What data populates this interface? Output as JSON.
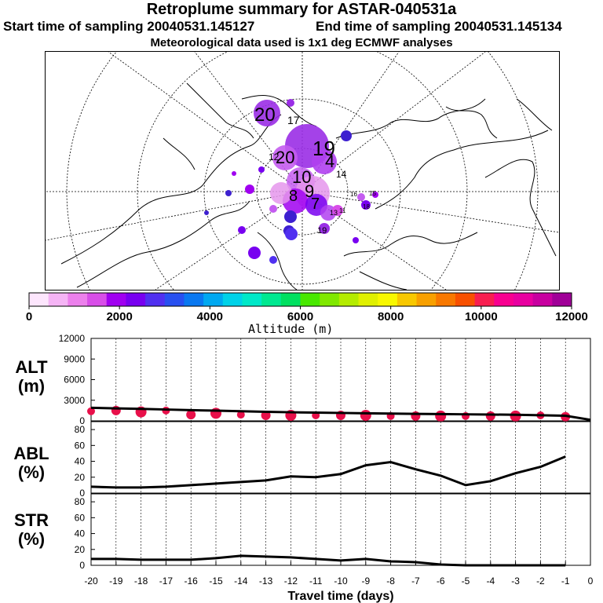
{
  "header": {
    "title": "Retroplume summary for ASTAR-040531a",
    "start_time": "Start time of sampling 20040531.145127",
    "end_time": "End time of sampling 20040531.145134",
    "met_data": "Meteorological data used is 1x1 deg ECMWF analyses"
  },
  "colorbar": {
    "label": "Altitude (m)",
    "ticks": [
      "0",
      "2000",
      "4000",
      "6000",
      "8000",
      "10000",
      "12000"
    ],
    "colors": [
      "#fde6fd",
      "#f5b4f5",
      "#ec80ec",
      "#d84ee8",
      "#a000f0",
      "#7800f0",
      "#5030f0",
      "#2850f0",
      "#0a78f0",
      "#00a8f0",
      "#00d2e8",
      "#00e8c8",
      "#00e890",
      "#00e060",
      "#48e800",
      "#80e800",
      "#b4ec00",
      "#e0f000",
      "#f8f800",
      "#f8c800",
      "#f8a000",
      "#f87800",
      "#f85000",
      "#f81e50",
      "#f80090",
      "#e800a0",
      "#c800a0",
      "#a00098"
    ]
  },
  "map": {
    "plume_labels": [
      "20",
      "17",
      "19",
      "14",
      "12",
      "20",
      "4",
      "10",
      "19",
      "13",
      "16",
      "9",
      "8",
      "7",
      "11",
      "15",
      "18"
    ]
  },
  "chart_data": [
    {
      "type": "line",
      "id": "ALT",
      "ylabel": "ALT\n(m)",
      "ylabel_top": "ALT",
      "ylabel_bottom": "(m)",
      "x": [
        -20,
        -19,
        -18,
        -17,
        -16,
        -15,
        -14,
        -13,
        -12,
        -11,
        -10,
        -9,
        -8,
        -7,
        -6,
        -5,
        -4,
        -3,
        -2,
        -1,
        0
      ],
      "values": [
        1900,
        1820,
        1740,
        1650,
        1560,
        1480,
        1400,
        1320,
        1250,
        1200,
        1150,
        1100,
        1060,
        1020,
        980,
        950,
        920,
        880,
        820,
        740,
        150
      ],
      "dots_x": [
        -20,
        -19,
        -18,
        -17,
        -16,
        -15,
        -14,
        -13,
        -12,
        -11,
        -10,
        -9,
        -8,
        -7,
        -6,
        -5,
        -4,
        -3,
        -2,
        -1
      ],
      "dots_y": [
        1400,
        1500,
        1300,
        1500,
        900,
        1100,
        900,
        800,
        800,
        800,
        800,
        800,
        700,
        700,
        700,
        700,
        700,
        700,
        800,
        600
      ],
      "ylim": [
        0,
        12000
      ],
      "yticks": [
        0,
        3000,
        6000,
        9000,
        12000
      ],
      "ytick_labels": [
        "0",
        "3000",
        "6000",
        "9000",
        "12000"
      ]
    },
    {
      "type": "line",
      "id": "ABL",
      "ylabel_top": "ABL",
      "ylabel_bottom": "(%)",
      "x": [
        -20,
        -19,
        -18,
        -17,
        -16,
        -15,
        -14,
        -13,
        -12,
        -11,
        -10,
        -9,
        -8,
        -7,
        -6,
        -5,
        -4,
        -3,
        -2,
        -1
      ],
      "values": [
        8,
        7,
        7,
        8,
        10,
        12,
        14,
        16,
        21,
        20,
        24,
        35,
        39,
        30,
        22,
        10,
        15,
        25,
        33,
        46
      ],
      "ylim": [
        0,
        90
      ],
      "yticks": [
        0,
        20,
        40,
        60,
        80
      ],
      "ytick_labels": [
        "0",
        "20",
        "40",
        "60",
        "80"
      ]
    },
    {
      "type": "line",
      "id": "STR",
      "ylabel_top": "STR",
      "ylabel_bottom": "(%)",
      "x": [
        -20,
        -19,
        -18,
        -17,
        -16,
        -15,
        -14,
        -13,
        -12,
        -11,
        -10,
        -9,
        -8,
        -7,
        -6,
        -5,
        -4,
        -3,
        -2,
        -1
      ],
      "values": [
        8,
        8,
        7,
        7,
        7,
        9,
        12,
        11,
        10,
        8,
        6,
        8,
        5,
        4,
        1,
        0,
        0,
        0,
        0,
        0
      ],
      "ylim": [
        0,
        90
      ],
      "yticks": [
        0,
        20,
        40,
        60,
        80
      ],
      "ytick_labels": [
        "0",
        "20",
        "40",
        "60",
        "80"
      ]
    }
  ],
  "xaxis": {
    "label": "Travel time (days)",
    "ticks": [
      -20,
      -19,
      -18,
      -17,
      -16,
      -15,
      -14,
      -13,
      -12,
      -11,
      -10,
      -9,
      -8,
      -7,
      -6,
      -5,
      -4,
      -3,
      -2,
      -1,
      0
    ],
    "tick_labels": [
      "-20",
      "-19",
      "-18",
      "-17",
      "-16",
      "-15",
      "-14",
      "-13",
      "-12",
      "-11",
      "-10",
      "-9",
      "-8",
      "-7",
      "-6",
      "-5",
      "-4",
      "-3",
      "-2",
      "-1",
      "0"
    ]
  },
  "colors": {
    "dots": "#e8104a",
    "line": "#000000"
  }
}
